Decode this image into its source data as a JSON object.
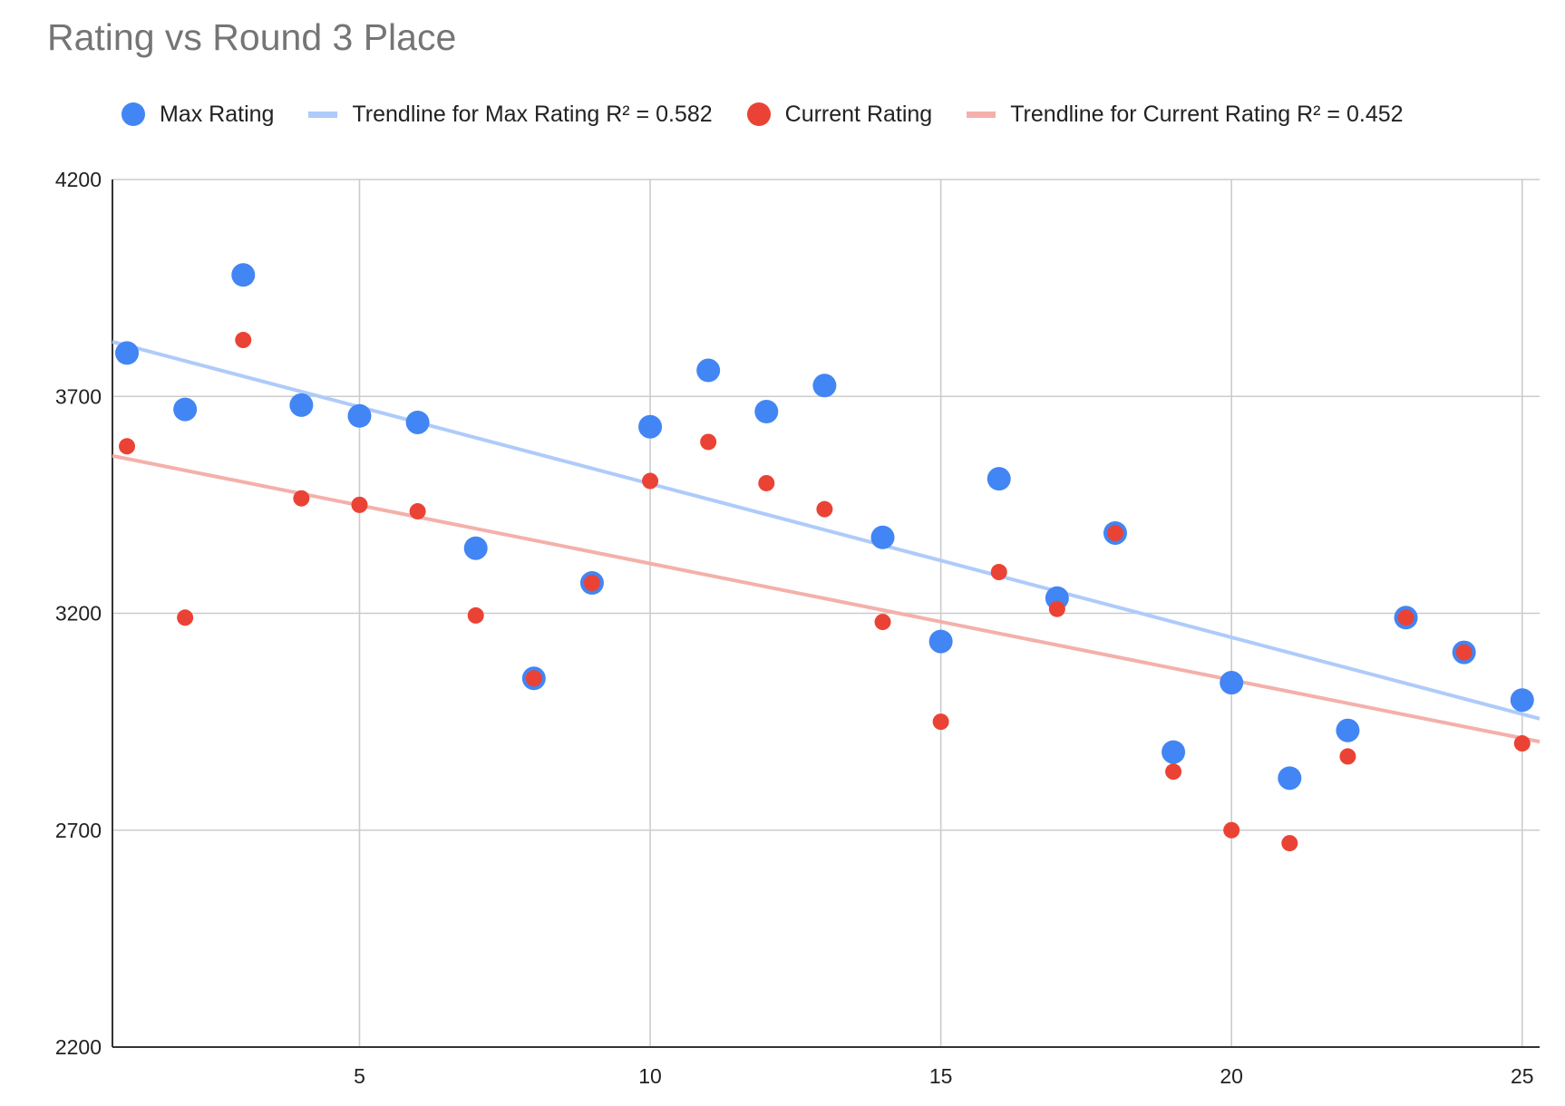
{
  "chart_data": {
    "type": "scatter",
    "title": "Rating vs Round 3 Place",
    "xlabel": "",
    "ylabel": "",
    "xlim": [
      0.75,
      25.3
    ],
    "ylim": [
      2200,
      4200
    ],
    "x_ticks": [
      5,
      10,
      15,
      20,
      25
    ],
    "y_ticks": [
      2200,
      2700,
      3200,
      3700,
      4200
    ],
    "x_tick_labels": [
      "5",
      "10",
      "15",
      "20",
      "25"
    ],
    "y_tick_labels": [
      "2200",
      "2700",
      "3200",
      "3700",
      "4200"
    ],
    "grid": true,
    "legend_position": "top",
    "series": [
      {
        "name": "Max Rating",
        "color": "#4285f4",
        "marker": "circle-large",
        "x": [
          1,
          2,
          3,
          4,
          5,
          6,
          7,
          8,
          9,
          10,
          11,
          12,
          13,
          14,
          15,
          16,
          17,
          18,
          19,
          20,
          21,
          22,
          23,
          24,
          25
        ],
        "y": [
          3800,
          3670,
          3980,
          3680,
          3655,
          3640,
          3350,
          3050,
          3270,
          3630,
          3760,
          3665,
          3725,
          3375,
          3135,
          3510,
          3235,
          3385,
          2880,
          3040,
          2820,
          2930,
          3190,
          3110,
          3000
        ]
      },
      {
        "name": "Current Rating",
        "color": "#ea4335",
        "marker": "circle-small",
        "x": [
          1,
          2,
          3,
          4,
          5,
          6,
          7,
          8,
          9,
          10,
          11,
          12,
          13,
          14,
          15,
          16,
          17,
          18,
          19,
          20,
          21,
          22,
          23,
          24,
          25
        ],
        "y": [
          3585,
          3190,
          3830,
          3465,
          3450,
          3435,
          3195,
          3050,
          3270,
          3505,
          3595,
          3500,
          3440,
          3180,
          2950,
          3295,
          3210,
          3385,
          2835,
          2700,
          2670,
          2870,
          3190,
          3110,
          2900
        ]
      }
    ],
    "trendlines": [
      {
        "name": "Trendline for Max Rating R² = 0.582",
        "color": "#aecbfa",
        "x": [
          0.75,
          25.3
        ],
        "y": [
          3826,
          2957
        ]
      },
      {
        "name": "Trendline for Current Rating R² = 0.452",
        "color": "#f4b0ab",
        "x": [
          0.75,
          25.3
        ],
        "y": [
          3563,
          2904
        ]
      }
    ],
    "legend": [
      {
        "label": "Max Rating",
        "kind": "dot",
        "color": "#4285f4"
      },
      {
        "label": "Trendline for Max Rating R² = 0.582",
        "kind": "line",
        "color": "#aecbfa"
      },
      {
        "label": "Current Rating",
        "kind": "dot",
        "color": "#ea4335"
      },
      {
        "label": "Trendline for Current Rating R² = 0.452",
        "kind": "line",
        "color": "#f4b0ab"
      }
    ]
  }
}
